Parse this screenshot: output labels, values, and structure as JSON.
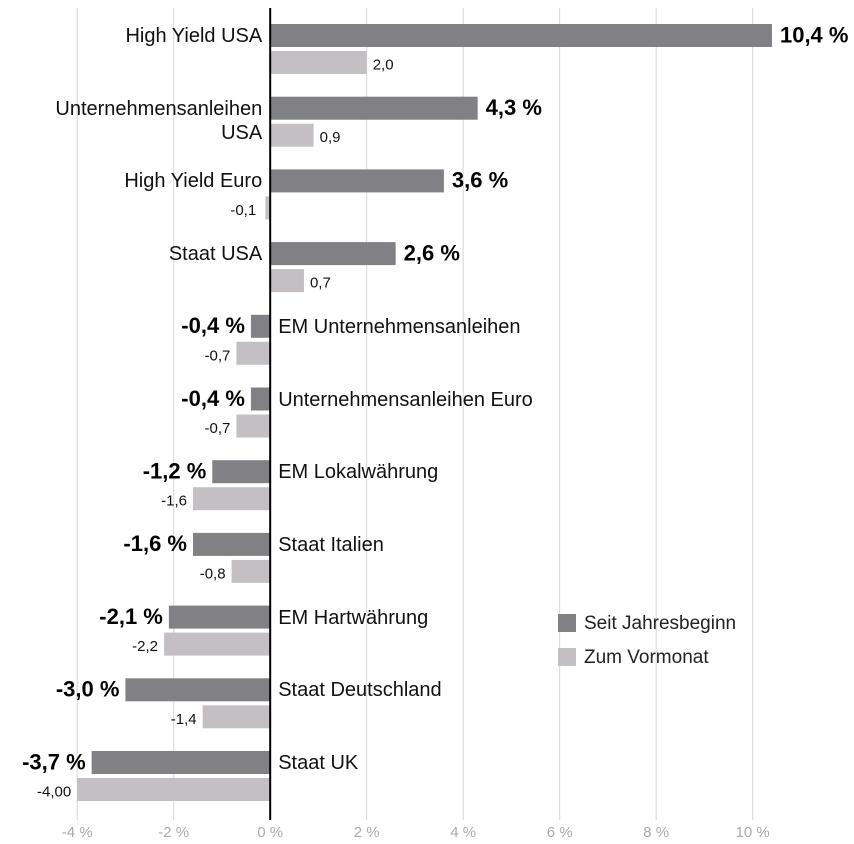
{
  "chart_data": {
    "type": "barh",
    "categories": [
      "High Yield USA",
      "Unternehmensanleihen USA",
      "High Yield Euro",
      "Staat USA",
      "EM Unternehmensanleihen",
      "Unternehmensanleihen Euro",
      "EM Lokalwährung",
      "Staat Italien",
      "EM Hartwährung",
      "Staat Deutschland",
      "Staat UK"
    ],
    "series": [
      {
        "name": "Seit Jahresbeginn",
        "color": "#808085",
        "values": [
          10.4,
          4.3,
          3.6,
          2.6,
          -0.4,
          -0.4,
          -1.2,
          -1.6,
          -2.1,
          -3.0,
          -3.7
        ],
        "value_labels": [
          "10,4 %",
          "4,3 %",
          "3,6 %",
          "2,6 %",
          "-0,4 %",
          "-0,4 %",
          "-1,2 %",
          "-1,6 %",
          "-2,1 %",
          "-3,0 %",
          "-3,7 %"
        ]
      },
      {
        "name": "Zum Vormonat",
        "color": "#c4bfc3",
        "values": [
          2.0,
          0.9,
          -0.1,
          0.7,
          -0.7,
          -0.7,
          -1.6,
          -0.8,
          -2.2,
          -1.4,
          -4.0
        ],
        "value_labels": [
          "2,0",
          "0,9",
          "-0,1",
          "0,7",
          "-0,7",
          "-0,7",
          "-1,6",
          "-0,8",
          "-2,2",
          "-1,4",
          "-4,00"
        ]
      }
    ],
    "xlim": [
      -5.6,
      12.1
    ],
    "xticks": [
      {
        "value": -4,
        "label": "-4 %"
      },
      {
        "value": -2,
        "label": "-2 %"
      },
      {
        "value": 0,
        "label": "0 %"
      },
      {
        "value": 2,
        "label": "2 %"
      },
      {
        "value": 4,
        "label": "4 %"
      },
      {
        "value": 6,
        "label": "6 %"
      },
      {
        "value": 8,
        "label": "8 %"
      },
      {
        "value": 10,
        "label": "10 %"
      }
    ],
    "grid": true
  }
}
